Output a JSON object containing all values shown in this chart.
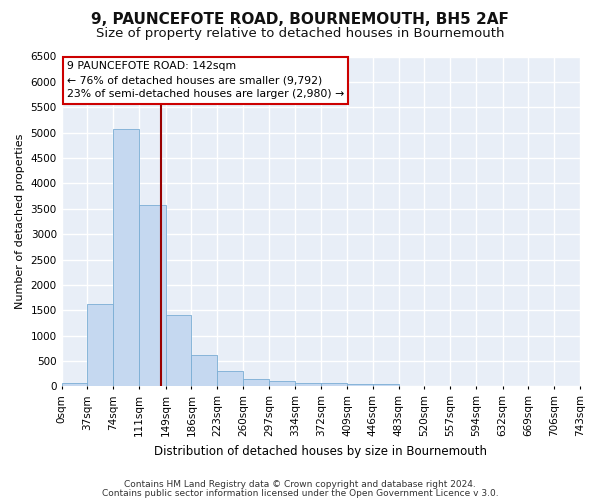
{
  "title": "9, PAUNCEFOTE ROAD, BOURNEMOUTH, BH5 2AF",
  "subtitle": "Size of property relative to detached houses in Bournemouth",
  "xlabel": "Distribution of detached houses by size in Bournemouth",
  "ylabel": "Number of detached properties",
  "bar_color": "#c5d8f0",
  "bar_edge_color": "#7aadd4",
  "fig_bg_color": "#ffffff",
  "ax_bg_color": "#e8eef7",
  "grid_color": "#ffffff",
  "bin_edges": [
    0,
    37,
    74,
    111,
    149,
    186,
    223,
    260,
    297,
    334,
    372,
    409,
    446,
    483,
    520,
    557,
    594,
    632,
    669,
    706,
    743
  ],
  "bin_labels": [
    "0sqm",
    "37sqm",
    "74sqm",
    "111sqm",
    "149sqm",
    "186sqm",
    "223sqm",
    "260sqm",
    "297sqm",
    "334sqm",
    "372sqm",
    "409sqm",
    "446sqm",
    "483sqm",
    "520sqm",
    "557sqm",
    "594sqm",
    "632sqm",
    "669sqm",
    "706sqm",
    "743sqm"
  ],
  "bar_heights": [
    75,
    1625,
    5075,
    3575,
    1400,
    625,
    305,
    150,
    100,
    75,
    75,
    50,
    50,
    0,
    0,
    0,
    0,
    0,
    0,
    0
  ],
  "vline_x": 142,
  "vline_color": "#990000",
  "ylim": [
    0,
    6500
  ],
  "yticks": [
    0,
    500,
    1000,
    1500,
    2000,
    2500,
    3000,
    3500,
    4000,
    4500,
    5000,
    5500,
    6000,
    6500
  ],
  "annotation_title": "9 PAUNCEFOTE ROAD: 142sqm",
  "annotation_line1": "← 76% of detached houses are smaller (9,792)",
  "annotation_line2": "23% of semi-detached houses are larger (2,980) →",
  "annotation_box_color": "#ffffff",
  "annotation_box_edge": "#cc0000",
  "footer1": "Contains HM Land Registry data © Crown copyright and database right 2024.",
  "footer2": "Contains public sector information licensed under the Open Government Licence v 3.0.",
  "title_fontsize": 11,
  "subtitle_fontsize": 9.5,
  "tick_fontsize": 7.5,
  "ylabel_fontsize": 8,
  "xlabel_fontsize": 8.5,
  "footer_fontsize": 6.5
}
